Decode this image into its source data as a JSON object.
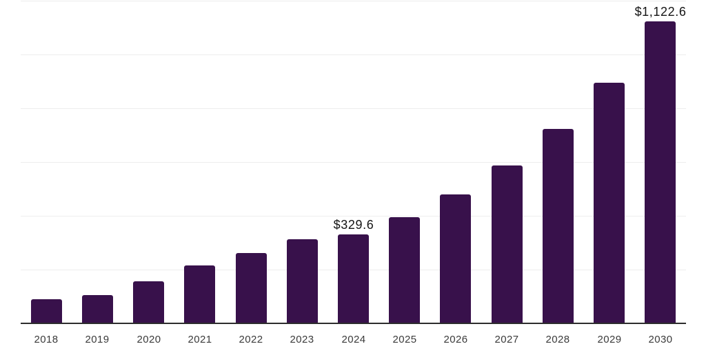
{
  "chart": {
    "background": "#ffffff"
  },
  "chart_data": {
    "type": "bar",
    "title": "",
    "xlabel": "",
    "ylabel": "",
    "categories": [
      "2018",
      "2019",
      "2020",
      "2021",
      "2022",
      "2023",
      "2024",
      "2025",
      "2026",
      "2027",
      "2028",
      "2029",
      "2030"
    ],
    "values": [
      90,
      104,
      156,
      216,
      262,
      313,
      329.6,
      394,
      479,
      586,
      724,
      896,
      1122.6
    ],
    "value_labels": [
      "",
      "",
      "",
      "",
      "",
      "",
      "$329.6",
      "",
      "",
      "",
      "",
      "",
      "$1,122.6"
    ],
    "ylim": [
      0,
      1200
    ],
    "grid_step": 200,
    "grid": true,
    "legend": false,
    "y_axis_labels_visible": false,
    "colors": {
      "bar": "#38114B",
      "grid": "#ededed",
      "axis_line": "#2d2d2d",
      "tick_label": "#3a3a3a",
      "value_label": "#141414",
      "background": "#ffffff"
    }
  }
}
